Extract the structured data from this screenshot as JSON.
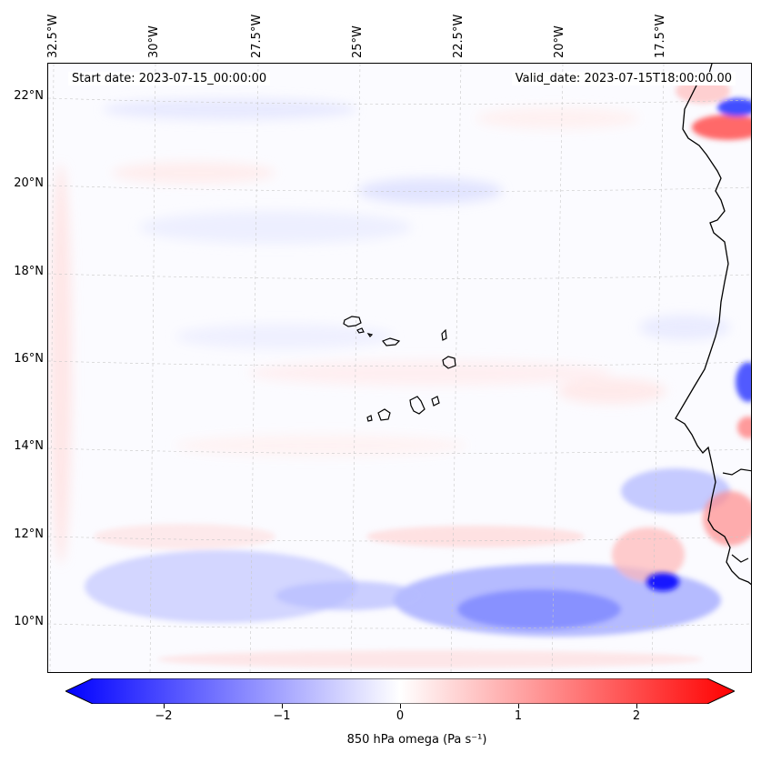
{
  "map": {
    "start_date": "Start date: 2023-07-15_00:00:00",
    "valid_date": "Valid_date: 2023-07-15T18:00:00.00",
    "longitude_labels": [
      "32.5°W",
      "30°W",
      "27.5°W",
      "25°W",
      "22.5°W",
      "20°W",
      "17.5°W"
    ],
    "latitude_labels": [
      "22°N",
      "20°N",
      "18°N",
      "16°N",
      "14°N",
      "12°N",
      "10°N"
    ],
    "gridlines": true,
    "field": "850 hPa omega",
    "features": [
      "Cape Verde islands",
      "West African coastline"
    ]
  },
  "colorbar": {
    "label": "850 hPa omega (Pa s⁻¹)",
    "tick_labels": [
      "−2",
      "−1",
      "0",
      "1",
      "2"
    ],
    "tick_values": [
      -2,
      -1,
      0,
      1,
      2
    ],
    "range": [
      -2.6,
      2.6
    ],
    "low_color": "#0000ff",
    "mid_color": "#ffffff",
    "high_color": "#ff0000",
    "extend": "both"
  }
}
